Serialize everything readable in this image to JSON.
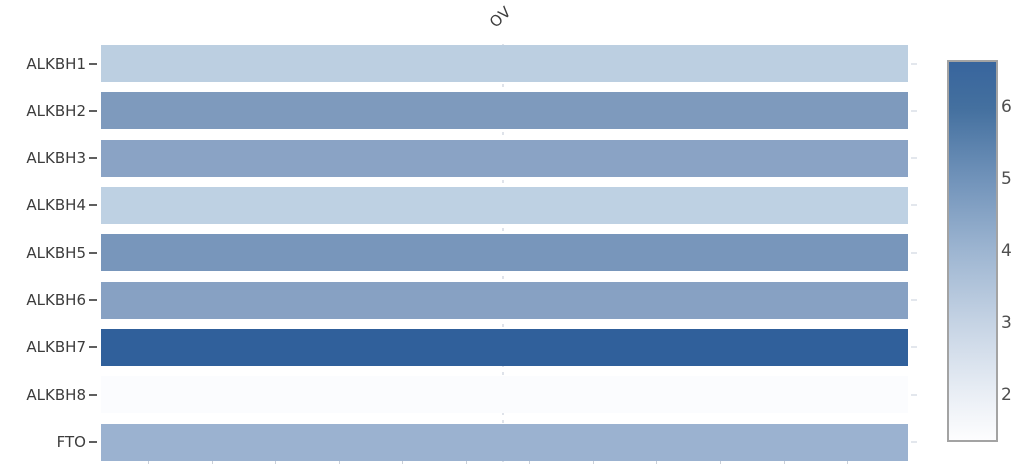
{
  "chart_data": {
    "type": "heatmap",
    "title": "",
    "columns": [
      "OV"
    ],
    "rows": [
      "ALKBH1",
      "ALKBH2",
      "ALKBH3",
      "ALKBH4",
      "ALKBH5",
      "ALKBH6",
      "ALKBH7",
      "ALKBH8",
      "FTO"
    ],
    "values": [
      [
        3.3
      ],
      [
        4.8
      ],
      [
        4.5
      ],
      [
        3.3
      ],
      [
        4.9
      ],
      [
        4.6
      ],
      [
        6.4
      ],
      [
        1.4
      ],
      [
        4.1
      ]
    ],
    "cell_colors": [
      "#BCCFE1",
      "#7E9ABD",
      "#8AA3C5",
      "#BED1E3",
      "#7896BB",
      "#87A1C3",
      "#30609B",
      "#FBFCFE",
      "#9BB2D0"
    ],
    "xlabel": "",
    "ylabel": "",
    "grid": "faint dashed vertical gridline at column center",
    "legend_position": "right",
    "colorbar": {
      "range": [
        1.35,
        6.65
      ],
      "ticks": [
        2,
        3,
        4,
        5,
        6
      ],
      "gradient": [
        {
          "value": 1.35,
          "color": "#FDFDFE"
        },
        {
          "value": 2,
          "color": "#E9EEF5"
        },
        {
          "value": 3,
          "color": "#C5D3E4"
        },
        {
          "value": 4,
          "color": "#9DB5D1"
        },
        {
          "value": 5,
          "color": "#7193BA"
        },
        {
          "value": 6,
          "color": "#44709F"
        },
        {
          "value": 6.65,
          "color": "#38659D"
        }
      ],
      "border_color": "#a3a3a3"
    }
  }
}
